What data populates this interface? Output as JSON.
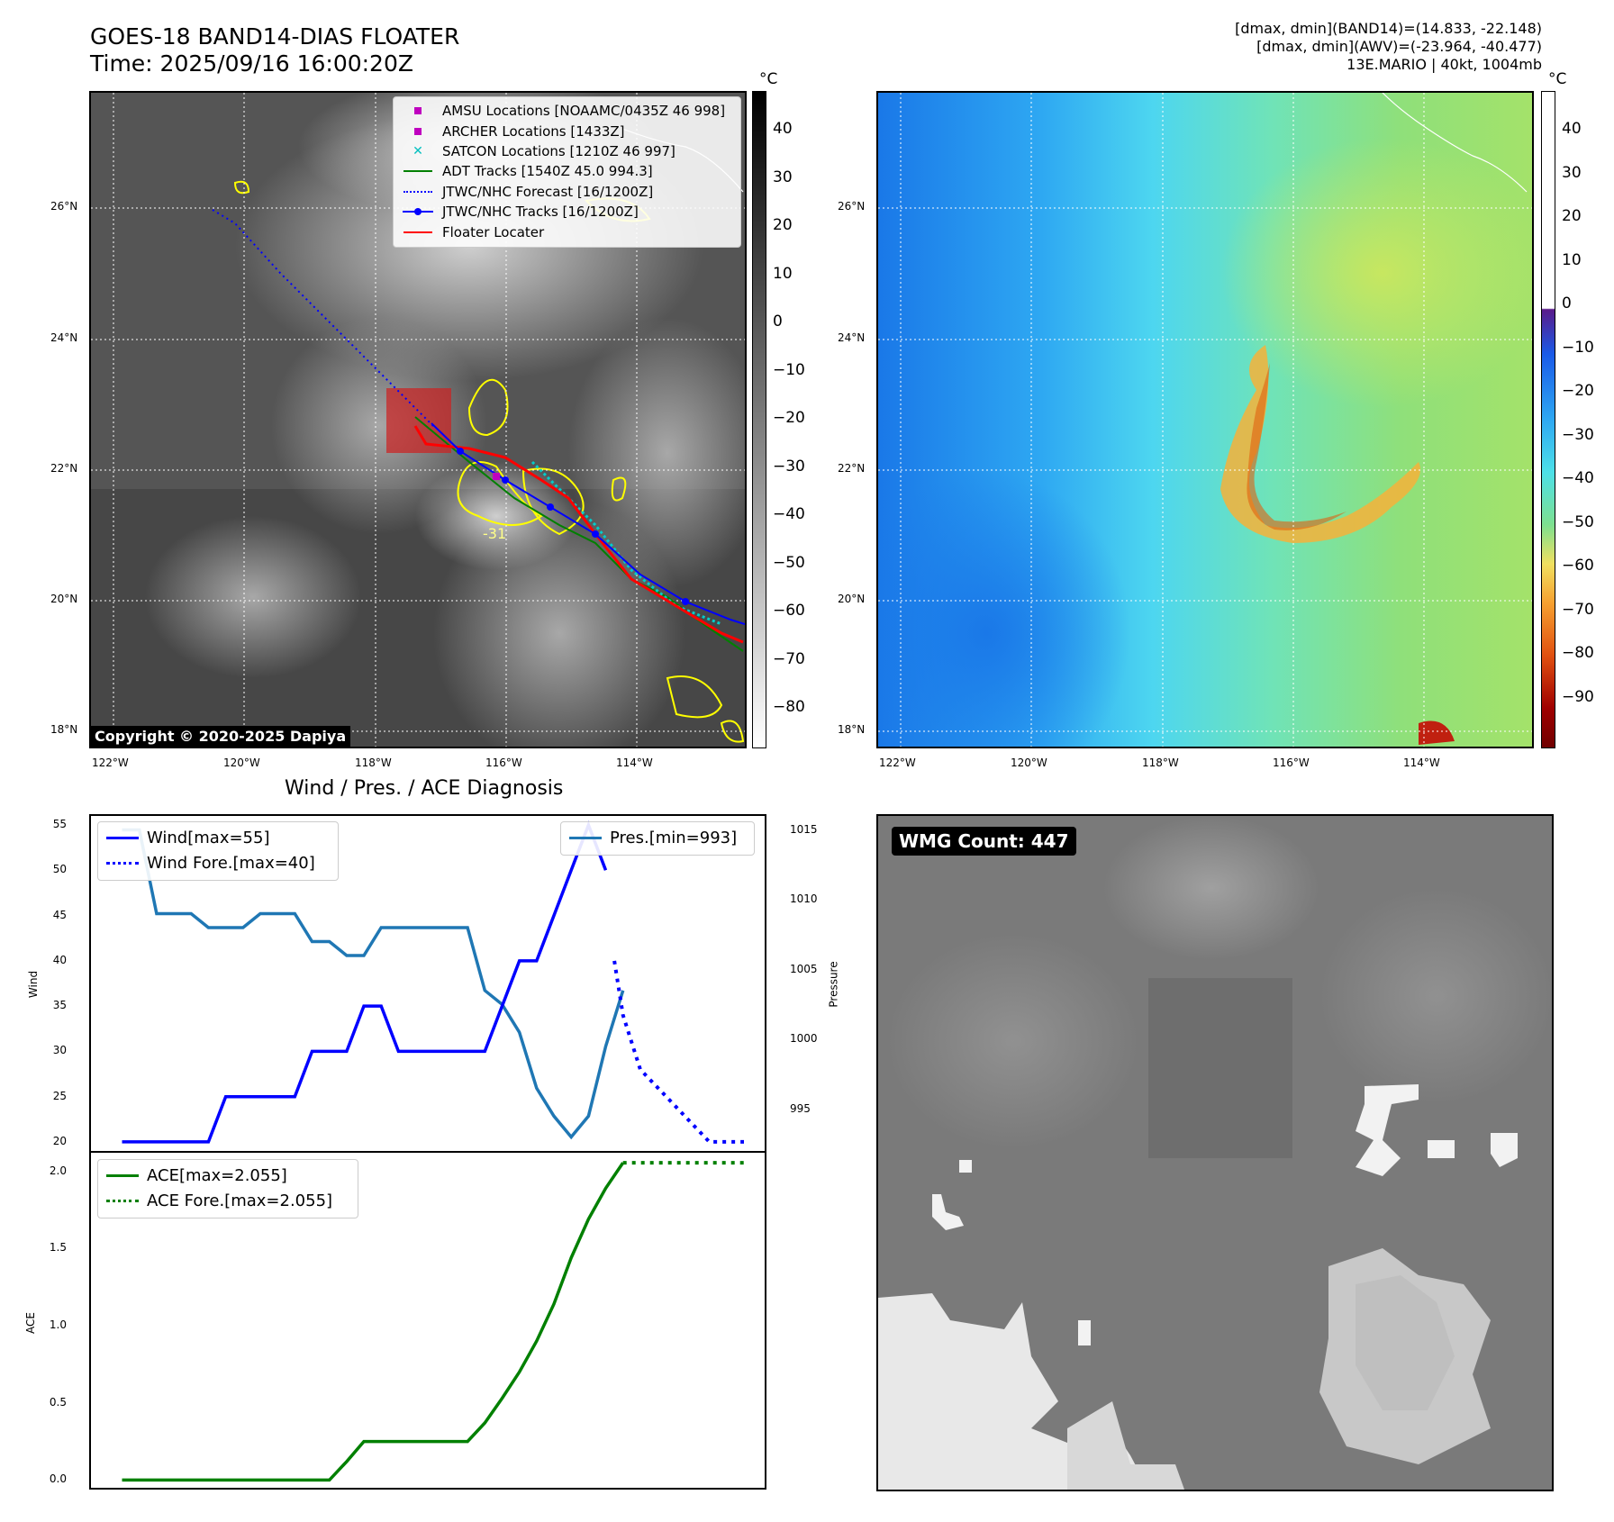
{
  "header": {
    "title": "GOES-18 BAND14-DIAS FLOATER",
    "time": "Time: 2025/09/16 16:00:20Z",
    "info_line1": "[dmax, dmin](BAND14)=(14.833, -22.148)",
    "info_line2": "[dmax, dmin](AWV)=(-23.964, -40.477)",
    "info_line3": "13E.MARIO | 40kt, 1004mb"
  },
  "map": {
    "lat_labels": [
      "26°N",
      "24°N",
      "22°N",
      "20°N",
      "18°N"
    ],
    "lon_labels": [
      "122°W",
      "120°W",
      "118°W",
      "116°W",
      "114°W"
    ],
    "copyright": "Copyright © 2020-2025 Dapiya",
    "contour_label": "-31",
    "legend": [
      {
        "label": "AMSU Locations [NOAAMC/0435Z 46 998]",
        "symbol": "square",
        "color": "#bf00bf"
      },
      {
        "label": "ARCHER Locations [1433Z]",
        "symbol": "square",
        "color": "#bf00bf"
      },
      {
        "label": "SATCON Locations [1210Z 46 997]",
        "symbol": "x",
        "color": "#00bfbf"
      },
      {
        "label": "ADT Tracks [1540Z 45.0 994.3]",
        "symbol": "line",
        "color": "#008000"
      },
      {
        "label": "JTWC/NHC Forecast [16/1200Z]",
        "symbol": "dotted",
        "color": "#0000ff"
      },
      {
        "label": "JTWC/NHC Tracks [16/1200Z]",
        "symbol": "line-dot",
        "color": "#0000ff"
      },
      {
        "label": "Floater Locater",
        "symbol": "line",
        "color": "#ff0000"
      }
    ]
  },
  "colorbars": {
    "unit": "°C",
    "left_ticks": [
      "40",
      "30",
      "20",
      "10",
      "0",
      "−10",
      "−20",
      "−30",
      "−40",
      "−50",
      "−60",
      "−70",
      "−80"
    ],
    "right_ticks": [
      "40",
      "30",
      "20",
      "10",
      "0",
      "−10",
      "−20",
      "−30",
      "−40",
      "−50",
      "−60",
      "−70",
      "−80",
      "−90"
    ]
  },
  "diagnosis": {
    "title": "Wind / Pres. / ACE Diagnosis",
    "wind_ylabel": "Wind",
    "pres_ylabel": "Pressure",
    "ace_ylabel": "ACE",
    "wind_legend": [
      "Wind[max=55]",
      "Wind Fore.[max=40]"
    ],
    "pres_legend": "Pres.[min=993]",
    "ace_legend": [
      "ACE[max=2.055]",
      "ACE Fore.[max=2.055]"
    ]
  },
  "wmg": {
    "label": "WMG Count: 447"
  },
  "chart_data": [
    {
      "type": "line",
      "name": "wind",
      "ylim": [
        19,
        56
      ],
      "yticks": [
        20,
        25,
        30,
        35,
        40,
        45,
        50,
        55
      ],
      "series": [
        {
          "name": "Wind[max=55]",
          "x": [
            0,
            1,
            2,
            3,
            4,
            5,
            6,
            7,
            8,
            9,
            10,
            11,
            12,
            13,
            14,
            15,
            16,
            17,
            18,
            19,
            20,
            21,
            22,
            23,
            24,
            25,
            26,
            27,
            28
          ],
          "values": [
            20,
            20,
            20,
            20,
            20,
            20,
            25,
            25,
            25,
            25,
            25,
            30,
            30,
            30,
            35,
            35,
            30,
            30,
            30,
            30,
            30,
            30,
            35,
            40,
            40,
            45,
            50,
            55,
            50
          ],
          "color": "#0000ff",
          "style": "solid"
        },
        {
          "name": "Wind Fore.[max=40]",
          "x": [
            28.5,
            29,
            30,
            31,
            32,
            33,
            34,
            35,
            36
          ],
          "values": [
            40,
            34,
            28,
            26,
            24,
            22,
            20,
            20,
            20
          ],
          "color": "#0000ff",
          "style": "dotted"
        }
      ]
    },
    {
      "type": "line",
      "name": "pressure",
      "ylim": [
        992,
        1016
      ],
      "yticks": [
        995,
        1000,
        1005,
        1010,
        1015
      ],
      "series": [
        {
          "name": "Pres.[min=993]",
          "x": [
            0,
            1,
            2,
            3,
            4,
            5,
            6,
            7,
            8,
            9,
            10,
            11,
            12,
            13,
            14,
            15,
            16,
            17,
            18,
            19,
            20,
            21,
            22,
            23,
            24,
            25,
            26,
            27,
            28,
            29
          ],
          "values": [
            1015,
            1015,
            1009,
            1009,
            1009,
            1008,
            1008,
            1008,
            1009,
            1009,
            1009,
            1007,
            1007,
            1006,
            1006,
            1008,
            1008,
            1008,
            1008,
            1008,
            1008,
            1003.5,
            1002.5,
            1000.5,
            996.5,
            994.5,
            993,
            994.5,
            999.5,
            1003.5
          ],
          "color": "#1f77b4",
          "style": "solid"
        }
      ]
    },
    {
      "type": "line",
      "name": "ace",
      "ylim": [
        -0.05,
        2.12
      ],
      "yticks": [
        0.0,
        0.5,
        1.0,
        1.5,
        2.0
      ],
      "series": [
        {
          "name": "ACE[max=2.055]",
          "x": [
            0,
            1,
            2,
            3,
            4,
            5,
            6,
            7,
            8,
            9,
            10,
            11,
            12,
            13,
            14,
            15,
            16,
            17,
            18,
            19,
            20,
            21,
            22,
            23,
            24,
            25,
            26,
            27,
            28,
            29
          ],
          "values": [
            0,
            0,
            0,
            0,
            0,
            0,
            0,
            0,
            0,
            0,
            0,
            0,
            0,
            0.12,
            0.25,
            0.25,
            0.25,
            0.25,
            0.25,
            0.25,
            0.25,
            0.37,
            0.53,
            0.7,
            0.9,
            1.14,
            1.44,
            1.69,
            1.89,
            2.055
          ],
          "color": "#008000",
          "style": "solid"
        },
        {
          "name": "ACE Fore.[max=2.055]",
          "x": [
            29,
            30,
            31,
            32,
            33,
            34,
            35,
            36
          ],
          "values": [
            2.055,
            2.055,
            2.055,
            2.055,
            2.055,
            2.055,
            2.055,
            2.055
          ],
          "color": "#008000",
          "style": "dotted"
        }
      ]
    }
  ]
}
